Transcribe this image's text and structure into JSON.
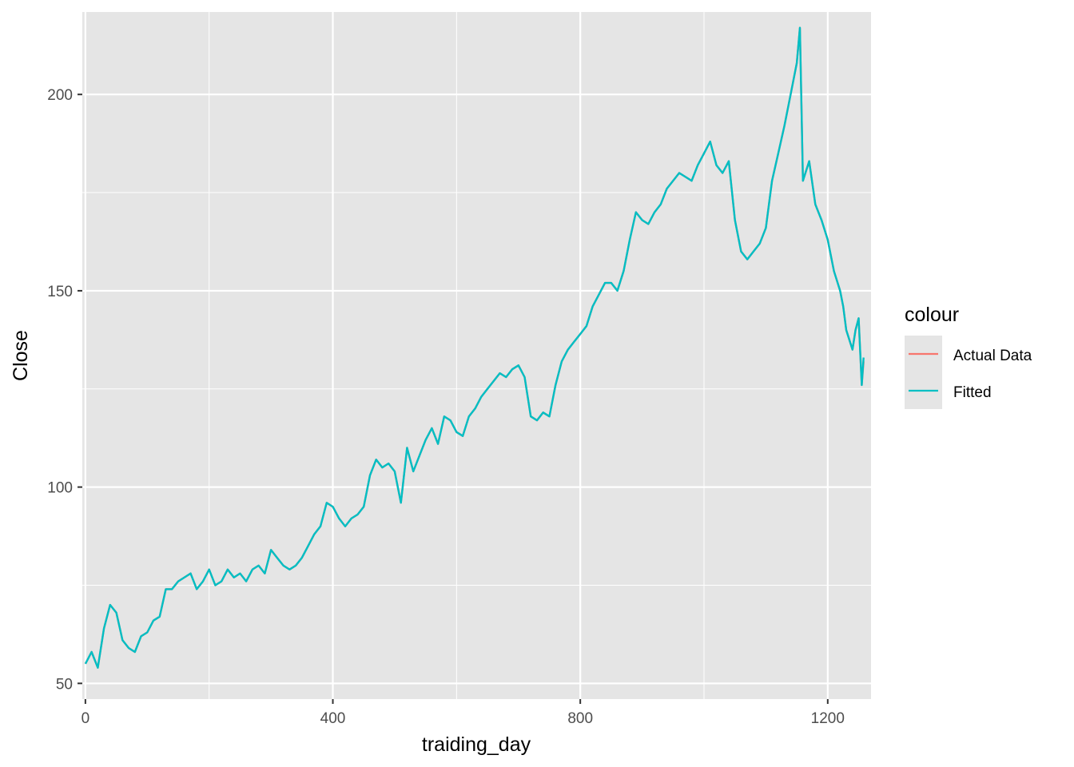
{
  "chart_data": {
    "type": "line",
    "xlabel": "traiding_day",
    "ylabel": "Close",
    "xlim": [
      -5,
      1270
    ],
    "ylim": [
      46,
      221
    ],
    "x_ticks": [
      0,
      400,
      800,
      1200
    ],
    "x_tick_labels": [
      "0",
      "400",
      "800",
      "1200"
    ],
    "y_ticks": [
      50,
      100,
      150,
      200
    ],
    "y_tick_labels": [
      "50",
      "100",
      "150",
      "200"
    ],
    "grid": true,
    "legend": {
      "title": "colour",
      "position": "right",
      "entries": [
        {
          "label": "Actual Data",
          "color": "#F8766D"
        },
        {
          "label": "Fitted",
          "color": "#00BFC4"
        }
      ]
    },
    "series": [
      {
        "name": "Actual Data",
        "color": "#F8766D",
        "x": [
          0,
          10,
          20,
          30,
          40,
          50,
          60,
          70,
          80,
          90,
          100,
          110,
          120,
          130,
          140,
          150,
          160,
          170,
          180,
          190,
          200,
          210,
          220,
          230,
          240,
          250,
          260,
          270,
          280,
          290,
          300,
          310,
          320,
          330,
          340,
          350,
          360,
          370,
          380,
          390,
          400,
          410,
          420,
          430,
          440,
          450,
          460,
          470,
          480,
          490,
          500,
          510,
          520,
          530,
          540,
          550,
          560,
          570,
          580,
          590,
          600,
          610,
          620,
          630,
          640,
          650,
          660,
          670,
          680,
          690,
          700,
          710,
          720,
          730,
          740,
          750,
          760,
          770,
          780,
          790,
          800,
          810,
          820,
          830,
          840,
          850,
          860,
          870,
          880,
          890,
          900,
          910,
          920,
          930,
          940,
          950,
          960,
          970,
          980,
          990,
          1000,
          1010,
          1020,
          1030,
          1040,
          1050,
          1060,
          1070,
          1080,
          1090,
          1100,
          1110,
          1120,
          1130,
          1140,
          1150,
          1155,
          1160,
          1170,
          1180,
          1190,
          1200,
          1210,
          1220,
          1225,
          1230,
          1240,
          1245,
          1250,
          1255,
          1258
        ],
        "values": [
          55,
          58,
          54,
          64,
          70,
          68,
          61,
          59,
          58,
          62,
          63,
          66,
          67,
          74,
          74,
          76,
          77,
          78,
          74,
          76,
          79,
          75,
          76,
          79,
          77,
          78,
          76,
          79,
          80,
          78,
          84,
          82,
          80,
          79,
          80,
          82,
          85,
          88,
          90,
          96,
          95,
          92,
          90,
          92,
          93,
          95,
          103,
          107,
          105,
          106,
          104,
          96,
          110,
          104,
          108,
          112,
          115,
          111,
          118,
          117,
          114,
          113,
          118,
          120,
          123,
          125,
          127,
          129,
          128,
          130,
          131,
          128,
          118,
          117,
          119,
          118,
          126,
          132,
          135,
          137,
          139,
          141,
          146,
          149,
          152,
          152,
          150,
          155,
          163,
          170,
          168,
          167,
          170,
          172,
          176,
          178,
          180,
          179,
          178,
          182,
          185,
          188,
          182,
          180,
          183,
          168,
          160,
          158,
          160,
          162,
          166,
          178,
          185,
          192,
          200,
          208,
          217,
          178,
          183,
          172,
          168,
          163,
          155,
          150,
          146,
          140,
          135,
          140,
          143,
          126,
          132
        ]
      },
      {
        "name": "Fitted",
        "color": "#00BFC4",
        "x": [
          0,
          10,
          20,
          30,
          40,
          50,
          60,
          70,
          80,
          90,
          100,
          110,
          120,
          130,
          140,
          150,
          160,
          170,
          180,
          190,
          200,
          210,
          220,
          230,
          240,
          250,
          260,
          270,
          280,
          290,
          300,
          310,
          320,
          330,
          340,
          350,
          360,
          370,
          380,
          390,
          400,
          410,
          420,
          430,
          440,
          450,
          460,
          470,
          480,
          490,
          500,
          510,
          520,
          530,
          540,
          550,
          560,
          570,
          580,
          590,
          600,
          610,
          620,
          630,
          640,
          650,
          660,
          670,
          680,
          690,
          700,
          710,
          720,
          730,
          740,
          750,
          760,
          770,
          780,
          790,
          800,
          810,
          820,
          830,
          840,
          850,
          860,
          870,
          880,
          890,
          900,
          910,
          920,
          930,
          940,
          950,
          960,
          970,
          980,
          990,
          1000,
          1010,
          1020,
          1030,
          1040,
          1050,
          1060,
          1070,
          1080,
          1090,
          1100,
          1110,
          1120,
          1130,
          1140,
          1150,
          1155,
          1160,
          1170,
          1180,
          1190,
          1200,
          1210,
          1220,
          1225,
          1230,
          1240,
          1245,
          1250,
          1255,
          1258
        ],
        "values": [
          55,
          58,
          54,
          64,
          70,
          68,
          61,
          59,
          58,
          62,
          63,
          66,
          67,
          74,
          74,
          76,
          77,
          78,
          74,
          76,
          79,
          75,
          76,
          79,
          77,
          78,
          76,
          79,
          80,
          78,
          84,
          82,
          80,
          79,
          80,
          82,
          85,
          88,
          90,
          96,
          95,
          92,
          90,
          92,
          93,
          95,
          103,
          107,
          105,
          106,
          104,
          96,
          110,
          104,
          108,
          112,
          115,
          111,
          118,
          117,
          114,
          113,
          118,
          120,
          123,
          125,
          127,
          129,
          128,
          130,
          131,
          128,
          118,
          117,
          119,
          118,
          126,
          132,
          135,
          137,
          139,
          141,
          146,
          149,
          152,
          152,
          150,
          155,
          163,
          170,
          168,
          167,
          170,
          172,
          176,
          178,
          180,
          179,
          178,
          182,
          185,
          188,
          182,
          180,
          183,
          168,
          160,
          158,
          160,
          162,
          166,
          178,
          185,
          192,
          200,
          208,
          217,
          178,
          183,
          172,
          168,
          163,
          155,
          150,
          146,
          140,
          135,
          140,
          143,
          126,
          133
        ]
      }
    ]
  }
}
